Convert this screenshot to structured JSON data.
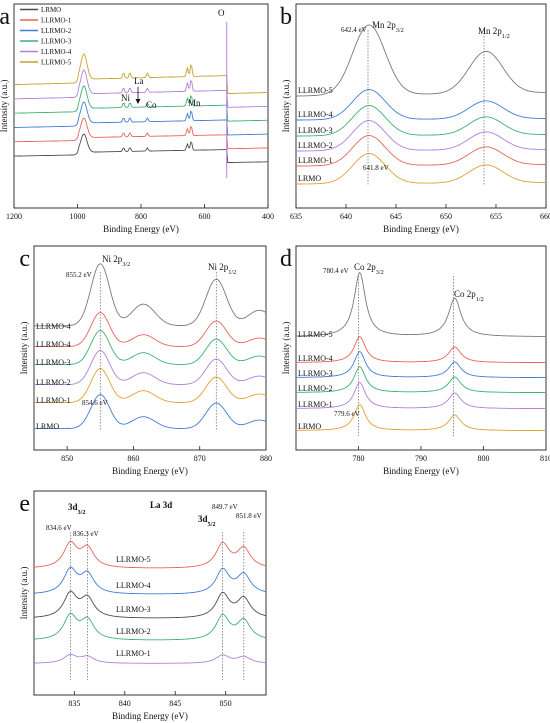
{
  "chart_data": [
    {
      "id": "a",
      "type": "line",
      "panel_label": "a",
      "xlabel": "Binding Energy (eV)",
      "ylabel": "Intensity (a.u.)",
      "xlim": [
        1200,
        400
      ],
      "xticks": [
        "1200",
        "1000",
        "800",
        "600",
        "400"
      ],
      "legend": "top-left",
      "annotations": [
        "Ni",
        "La",
        "Co",
        "Mn",
        "O"
      ],
      "series": [
        {
          "name": "LRMO",
          "color": "#4d4d4d"
        },
        {
          "name": "LLRMO-1",
          "color": "#e8645a"
        },
        {
          "name": "LLRMO-2",
          "color": "#3f7fd6"
        },
        {
          "name": "LLRMO-3",
          "color": "#3cb371"
        },
        {
          "name": "LLRMO-4",
          "color": "#b27fe0"
        },
        {
          "name": "LLRMO-5",
          "color": "#c9a227"
        }
      ]
    },
    {
      "id": "b",
      "type": "line",
      "panel_label": "b",
      "xlabel": "Binding Energy (eV)",
      "ylabel": "Intensity (a.u.)",
      "xlim": [
        635,
        660
      ],
      "xticks": [
        "635",
        "640",
        "645",
        "650",
        "655",
        "660"
      ],
      "peak_labels": [
        "Mn 2p3/2",
        "Mn 2p1/2"
      ],
      "value_labels": [
        "642.4 eV",
        "641.8 eV"
      ],
      "peak_positions": [
        642.2,
        653.8
      ],
      "series": [
        {
          "name": "LLRMO-5",
          "color": "#7a7a7a"
        },
        {
          "name": "LLRMO-4",
          "color": "#3f7fd6"
        },
        {
          "name": "LLRMO-3",
          "color": "#3cb371"
        },
        {
          "name": "LLRMO-2",
          "color": "#b27fe0"
        },
        {
          "name": "LLRMO-1",
          "color": "#e8645a"
        },
        {
          "name": "LRMO",
          "color": "#e3a030"
        }
      ]
    },
    {
      "id": "c",
      "type": "line",
      "panel_label": "c",
      "xlabel": "Binding Energy (eV)",
      "ylabel": "Intensity (a.u.)",
      "xlim": [
        845,
        880
      ],
      "xticks": [
        "850",
        "860",
        "870",
        "880"
      ],
      "peak_labels": [
        "Ni 2p3/2",
        "Ni 2p1/2"
      ],
      "value_labels": [
        "855.2 eV",
        "854.6 eV"
      ],
      "peak_positions": [
        855,
        872.5
      ],
      "series": [
        {
          "name": "LLRMO-4",
          "color": "#7a7a7a"
        },
        {
          "name": "LLRMO-4",
          "color": "#e8645a"
        },
        {
          "name": "LLRMO-3",
          "color": "#3cb371"
        },
        {
          "name": "LLRMO-2",
          "color": "#b27fe0"
        },
        {
          "name": "LLRMO-1",
          "color": "#e3a030"
        },
        {
          "name": "LRMO",
          "color": "#3f7fd6"
        }
      ]
    },
    {
      "id": "d",
      "type": "line",
      "panel_label": "d",
      "xlabel": "Binding Energy (eV)",
      "ylabel": "Intensity (a.u.)",
      "xlim": [
        770,
        810
      ],
      "xticks": [
        "780",
        "790",
        "800",
        "810"
      ],
      "peak_labels": [
        "Co 2p3/2",
        "Co 2p1/2"
      ],
      "value_labels": [
        "780.4 eV",
        "779.6 eV"
      ],
      "peak_positions": [
        780,
        795.2
      ],
      "series": [
        {
          "name": "LLRMO-5",
          "color": "#7a7a7a"
        },
        {
          "name": "LLRMO-4",
          "color": "#e8645a"
        },
        {
          "name": "LLRMO-3",
          "color": "#3f7fd6"
        },
        {
          "name": "LLRMO-2",
          "color": "#3cb371"
        },
        {
          "name": "LLRMO-1",
          "color": "#b27fe0"
        },
        {
          "name": "LRMO",
          "color": "#e3a030"
        }
      ]
    },
    {
      "id": "e",
      "type": "line",
      "panel_label": "e",
      "title": "La 3d",
      "xlabel": "Binding Energy (eV)",
      "ylabel": "Intensity (a.u.)",
      "xlim": [
        831,
        854
      ],
      "xticks": [
        "835",
        "840",
        "845",
        "850"
      ],
      "peak_labels": [
        "3d3/2",
        "3d5/2"
      ],
      "value_labels": [
        "834.6 eV",
        "836.3 eV",
        "849.7 eV",
        "851.8 eV"
      ],
      "peak_positions": [
        834.6,
        836.3,
        849.7,
        851.8
      ],
      "series": [
        {
          "name": "LLRMO-5",
          "color": "#e8645a"
        },
        {
          "name": "LLRMO-4",
          "color": "#3f7fd6"
        },
        {
          "name": "LLRMO-3",
          "color": "#4d4d4d"
        },
        {
          "name": "LLRMO-2",
          "color": "#3cb371"
        },
        {
          "name": "LLRMO-1",
          "color": "#b27fe0"
        }
      ]
    }
  ]
}
